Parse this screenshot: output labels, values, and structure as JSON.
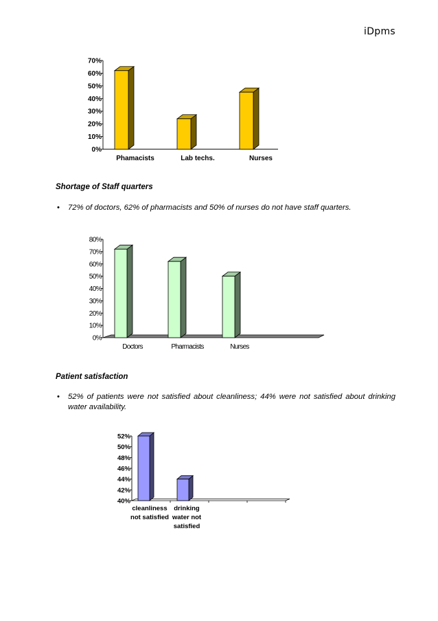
{
  "header": {
    "doc_label": "iDpms"
  },
  "sections": {
    "staff_quarters": {
      "heading": "Shortage of Staff quarters",
      "bullet": "72% of doctors, 62% of pharmacists and 50% of nurses do not have staff quarters."
    },
    "patient_satisfaction": {
      "heading": "Patient satisfaction",
      "bullet": "52% of patients were not satisfied about cleanliness; 44% were not satisfied about drinking water availability."
    }
  },
  "chart_data": [
    {
      "type": "bar",
      "title": "",
      "categories": [
        "Phamacists",
        "Lab techs.",
        "Nurses"
      ],
      "values": [
        62,
        24,
        45
      ],
      "ylim": [
        0,
        70
      ],
      "ticks": [
        "0%",
        "10%",
        "20%",
        "30%",
        "40%",
        "50%",
        "60%",
        "70%"
      ],
      "bar_color": "#ffcc00",
      "grid": false
    },
    {
      "type": "bar",
      "title": "",
      "categories": [
        "Doctors",
        "Pharmacists",
        "Nurses"
      ],
      "values": [
        72,
        62,
        50
      ],
      "ylim": [
        0,
        80
      ],
      "ticks": [
        "0%",
        "10%",
        "20%",
        "30%",
        "40%",
        "50%",
        "60%",
        "70%",
        "80%"
      ],
      "bar_color": "#ccffcc",
      "grid": false
    },
    {
      "type": "bar",
      "title": "",
      "categories": [
        "cleanliness not satisfied",
        "drinking water not satisfied"
      ],
      "values": [
        52,
        44
      ],
      "ylim": [
        40,
        52
      ],
      "ticks": [
        "40%",
        "42%",
        "44%",
        "46%",
        "48%",
        "50%",
        "52%"
      ],
      "bar_color": "#9999ff",
      "grid": false
    }
  ]
}
